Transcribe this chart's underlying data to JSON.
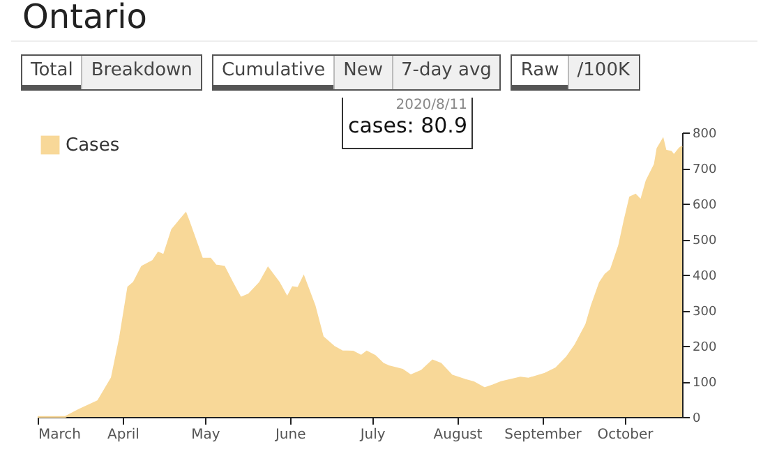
{
  "chart_data": {
    "type": "area",
    "title": "Ontario",
    "annotations": [
      "Total",
      "Breakdown",
      "Cumulative",
      "New",
      "7-day avg",
      "Raw",
      "/100K",
      "2020/8/11",
      "cases: 80.9"
    ],
    "x": [
      "2020-03-01",
      "2020-03-11",
      "2020-03-16",
      "2020-03-23",
      "2020-03-28",
      "2020-03-31",
      "2020-04-03",
      "2020-04-05",
      "2020-04-08",
      "2020-04-12",
      "2020-04-14",
      "2020-04-16",
      "2020-04-19",
      "2020-04-24",
      "2020-04-25",
      "2020-04-30",
      "2020-05-03",
      "2020-05-05",
      "2020-05-08",
      "2020-05-11",
      "2020-05-14",
      "2020-05-17",
      "2020-05-21",
      "2020-05-24",
      "2020-05-28",
      "2020-05-31",
      "2020-06-02",
      "2020-06-04",
      "2020-06-06",
      "2020-06-10",
      "2020-06-13",
      "2020-06-17",
      "2020-06-20",
      "2020-06-24",
      "2020-06-27",
      "2020-06-29",
      "2020-07-02",
      "2020-07-05",
      "2020-07-07",
      "2020-07-12",
      "2020-07-15",
      "2020-07-19",
      "2020-07-23",
      "2020-07-26",
      "2020-07-30",
      "2020-08-04",
      "2020-08-07",
      "2020-08-11",
      "2020-08-14",
      "2020-08-17",
      "2020-08-24",
      "2020-08-27",
      "2020-09-02",
      "2020-09-06",
      "2020-09-10",
      "2020-09-13",
      "2020-09-17",
      "2020-09-19",
      "2020-09-22",
      "2020-09-24",
      "2020-09-26",
      "2020-09-29",
      "2020-10-01",
      "2020-10-03",
      "2020-10-05",
      "2020-10-07",
      "2020-10-09",
      "2020-10-12",
      "2020-10-13",
      "2020-10-15",
      "2020-10-16",
      "2020-10-18",
      "2020-10-19",
      "2020-10-21",
      "2020-10-22"
    ],
    "series": [
      {
        "name": "Cases",
        "color": "#f8d898",
        "values": [
          0,
          0,
          20,
          45,
          110,
          222,
          365,
          378,
          423,
          439,
          462,
          455,
          527,
          573,
          553,
          445,
          445,
          426,
          423,
          378,
          335,
          345,
          378,
          419,
          378,
          336,
          365,
          363,
          395,
          313,
          225,
          198,
          185,
          184,
          172,
          184,
          172,
          150,
          143,
          133,
          117,
          130,
          159,
          150,
          117,
          104,
          98,
          80.9,
          89,
          98,
          111,
          108,
          122,
          137,
          169,
          202,
          260,
          313,
          378,
          401,
          414,
          482,
          553,
          618,
          625,
          609,
          664,
          710,
          755,
          781,
          749,
          746,
          736,
          755,
          761
        ]
      }
    ],
    "xlim": [
      "2020-03-01",
      "2020-10-22"
    ],
    "xticks": [
      {
        "value": "2020-03-01",
        "label": "March"
      },
      {
        "value": "2020-04-01",
        "label": "April"
      },
      {
        "value": "2020-05-01",
        "label": "May"
      },
      {
        "value": "2020-06-01",
        "label": "June"
      },
      {
        "value": "2020-07-01",
        "label": "July"
      },
      {
        "value": "2020-08-01",
        "label": "August"
      },
      {
        "value": "2020-09-01",
        "label": "September"
      },
      {
        "value": "2020-10-01",
        "label": "October"
      }
    ],
    "ylim": [
      0,
      800
    ],
    "yticks": [
      0,
      100,
      200,
      300,
      400,
      500,
      600,
      700,
      800
    ],
    "legend": "top left"
  }
}
